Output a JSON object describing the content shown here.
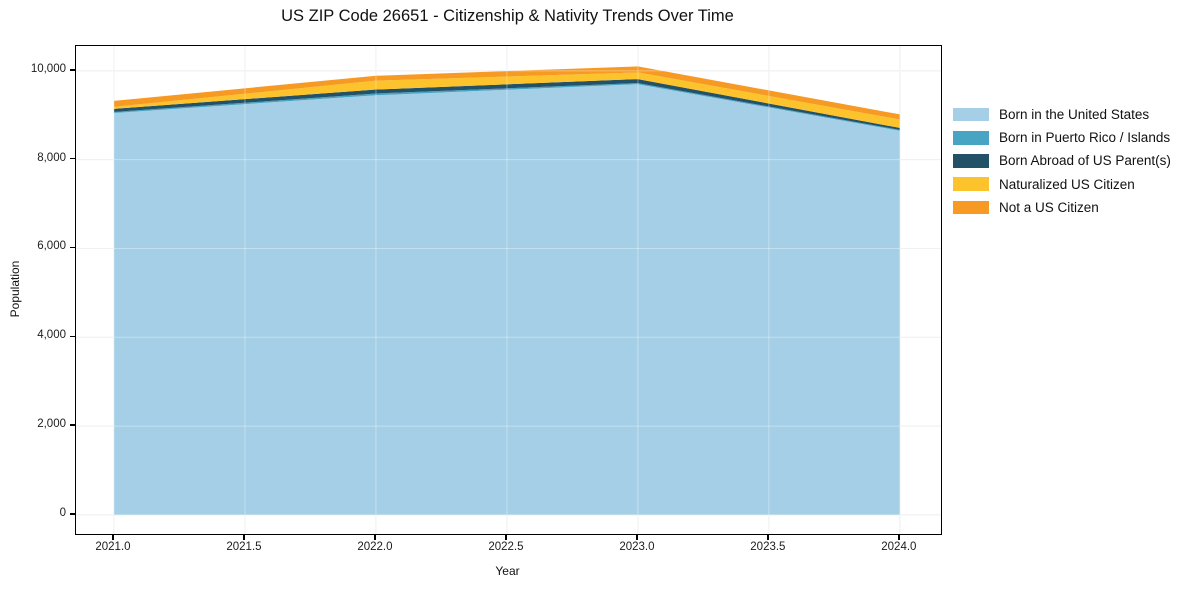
{
  "title": "US ZIP Code 26651 - Citizenship & Nativity Trends Over Time",
  "chart_data": {
    "type": "area",
    "stacked": true,
    "title": "US ZIP Code 26651 - Citizenship & Nativity Trends Over Time",
    "xlabel": "Year",
    "ylabel": "Population",
    "x": [
      2021,
      2022,
      2023,
      2024
    ],
    "series": [
      {
        "name": "Born in the United States",
        "color": "#a5cfe6",
        "values": [
          9050,
          9450,
          9700,
          8650
        ]
      },
      {
        "name": "Born in Puerto Rico / Islands",
        "color": "#47a4c2",
        "values": [
          25,
          40,
          25,
          20
        ]
      },
      {
        "name": "Born Abroad of US Parent(s)",
        "color": "#235168",
        "values": [
          70,
          90,
          90,
          45
        ]
      },
      {
        "name": "Naturalized US Citizen",
        "color": "#fcc32d",
        "values": [
          45,
          200,
          150,
          190
        ]
      },
      {
        "name": "Not a US Citizen",
        "color": "#f79a23",
        "values": [
          135,
          110,
          135,
          115
        ]
      }
    ],
    "totals": [
      9325,
      9890,
      10100,
      9020
    ],
    "xlim": [
      2020.855,
      2024.157
    ],
    "ylim": [
      -430,
      10560
    ],
    "x_ticks": {
      "values": [
        2021.0,
        2021.5,
        2022.0,
        2022.5,
        2023.0,
        2023.5,
        2024.0
      ],
      "labels": [
        "2021.0",
        "2021.5",
        "2022.0",
        "2022.5",
        "2023.0",
        "2023.5",
        "2024.0"
      ]
    },
    "y_ticks": {
      "values": [
        0,
        2000,
        4000,
        6000,
        8000,
        10000
      ],
      "labels": [
        "0",
        "2,000",
        "4,000",
        "6,000",
        "8,000",
        "10,000"
      ]
    },
    "grid": true,
    "legend_position": "right"
  },
  "colors": {
    "grid": "#e8e8e8",
    "grid_overlay": "rgba(255,255,255,0.35)",
    "axis": "#000000",
    "text": "#111111"
  }
}
